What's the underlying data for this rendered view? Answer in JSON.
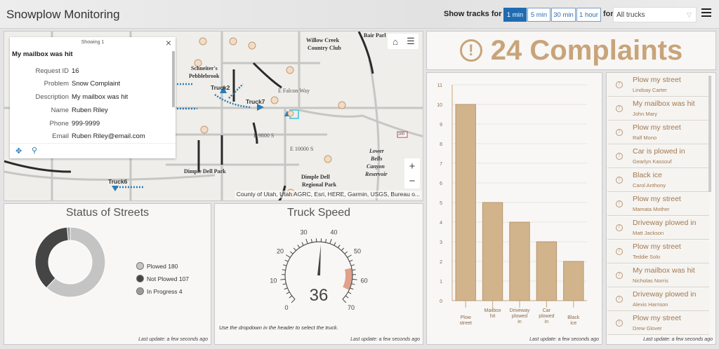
{
  "header": {
    "title": "Snowplow Monitoring",
    "tracks_label": "Show tracks for last",
    "time_options": [
      "1 min",
      "5 min",
      "30 min",
      "1 hour"
    ],
    "selected_time": "1 min",
    "for_label": "for",
    "truck_select": "All trucks"
  },
  "map": {
    "popup": {
      "showing": "Showing 1",
      "title": "My mailbox was hit",
      "fields": [
        {
          "k": "Request ID",
          "v": "16"
        },
        {
          "k": "Problem",
          "v": "Snow Complaint"
        },
        {
          "k": "Description",
          "v": "My mailbox was hit"
        },
        {
          "k": "Name",
          "v": "Ruben Riley"
        },
        {
          "k": "Phone",
          "v": "999-9999"
        },
        {
          "k": "Email",
          "v": "Ruben Riley@email.com"
        }
      ]
    },
    "labels": {
      "willow": "Willow Creek",
      "willow2": "Country Club",
      "bair": "Bair Parl",
      "schneiter": "Schneiter's",
      "pebble": "Pebblebrook",
      "dimple": "Dimple Dell Park",
      "dimple_reg": "Dimple Dell",
      "dimple_reg2": "Regional Park",
      "lower": "Lower",
      "bells": "Bells",
      "canyon": "Canyon",
      "reservoir": "Reservoir",
      "falcon": "E Falcon Way",
      "e9800": "E 9800 S",
      "e10000": "E 10000 S",
      "hwy": "209"
    },
    "trucks": [
      "Truck2",
      "Truck7",
      "Truck6"
    ],
    "attribution": "County of Utah, Utah AGRC, Esri, HERE, Garmin, USGS, Bureau o..."
  },
  "complaints": {
    "count_label": "24 Complaints",
    "color": "#c8a47a"
  },
  "chart_data": {
    "type": "bar",
    "categories": [
      "Plow street",
      "Mailbox hit",
      "Driveway plowed in",
      "Car plowed in",
      "Black ice"
    ],
    "values": [
      10,
      5,
      4,
      3,
      2
    ],
    "ylim": [
      0,
      11
    ],
    "yticks": [
      0,
      1,
      2,
      3,
      4,
      5,
      6,
      7,
      8,
      9,
      10,
      11
    ],
    "grid": true,
    "bar_color": "#d2b48c"
  },
  "complaint_list": [
    {
      "title": "Plow my street",
      "name": "Lindsay Carter"
    },
    {
      "title": "My mailbox was hit",
      "name": "John Mary"
    },
    {
      "title": "Plow my street",
      "name": "Ralf Mono"
    },
    {
      "title": "Car is plowed in",
      "name": "Gearlyn Kassouf"
    },
    {
      "title": "Black ice",
      "name": "Carol Anthony"
    },
    {
      "title": "Plow my street",
      "name": "Mamata Mother"
    },
    {
      "title": "Driveway plowed in",
      "name": "Matt Jackson"
    },
    {
      "title": "Plow my street",
      "name": "Teddie Solo"
    },
    {
      "title": "My mailbox was hit",
      "name": "Nicholas Norris"
    },
    {
      "title": "Driveway plowed in",
      "name": "Alexis Harrison"
    },
    {
      "title": "Plow my street",
      "name": "Drew Glover"
    }
  ],
  "status": {
    "title": "Status of Streets",
    "items": [
      {
        "label": "Plowed",
        "value": 180,
        "color": "#c4c4c4"
      },
      {
        "label": "Not Plowed",
        "value": 107,
        "color": "#454545"
      },
      {
        "label": "In Progress",
        "value": 4,
        "color": "#9a9a9a"
      }
    ]
  },
  "speed": {
    "title": "Truck Speed",
    "value": 36,
    "min": 0,
    "max": 70,
    "ticks": [
      0,
      10,
      20,
      30,
      40,
      50,
      60,
      70
    ],
    "warn_range": [
      55,
      65
    ],
    "warn_color": "#e0a08a",
    "note": "Use the dropdown in the header to select the truck."
  },
  "last_update": "Last update: a few seconds ago"
}
